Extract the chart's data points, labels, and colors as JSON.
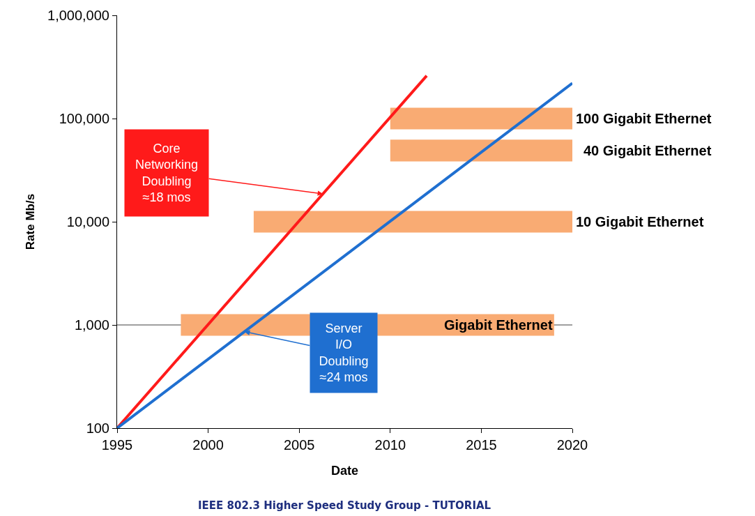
{
  "chart_data": {
    "type": "line",
    "xlabel": "Date",
    "ylabel": "Rate Mb/s",
    "log": "y",
    "grid": false,
    "marker": "none",
    "line_style": "solid",
    "xlim": [
      1995,
      2020
    ],
    "xticks": [
      1995,
      2000,
      2005,
      2010,
      2015,
      2020
    ],
    "ylim": [
      100,
      1000000
    ],
    "yticks": [
      {
        "value": 100,
        "label": "100"
      },
      {
        "value": 1000,
        "label": "1,000"
      },
      {
        "value": 10000,
        "label": "10,000"
      },
      {
        "value": 100000,
        "label": "100,000"
      },
      {
        "value": 1000000,
        "label": "1,000,000"
      }
    ],
    "series": [
      {
        "color": "#ff1a1a",
        "x": [
          1995,
          2012
        ],
        "values": [
          100,
          260000
        ]
      },
      {
        "color": "#1f6fd0",
        "x": [
          1995,
          2020
        ],
        "values": [
          100,
          220000
        ]
      }
    ],
    "bands": [
      {
        "axis": "x",
        "from": 2010,
        "to": 2020,
        "label": "100 Gigabit Ethernet",
        "color": "#f9ab73"
      },
      {
        "axis": "x",
        "from": 2010,
        "to": 2020,
        "label": "40 Gigabit Ethernet",
        "color": "#f9ab73"
      },
      {
        "axis": "x",
        "from": 2002.5,
        "to": 2020,
        "label": "10 Gigabit Ethernet",
        "color": "#f9ab73"
      },
      {
        "axis": "x",
        "from": 1998.5,
        "to": 2019,
        "label": "Gigabit Ethernet",
        "color": "#f9ab73"
      }
    ],
    "ref_lines": [
      {
        "axis": "y",
        "value": 1000,
        "color": "#404040"
      }
    ],
    "annotations": [
      {
        "text": "Core\nNetworking\nDoubling\n≈18 mos",
        "x": 2006.3,
        "y": 18600
      },
      {
        "text": "Server\nI/O\nDoubling\n≈24 mos",
        "x": 2002,
        "y": 860
      },
      "IEEE 802.3 Higher Speed Study Group - TUTORIAL"
    ]
  }
}
